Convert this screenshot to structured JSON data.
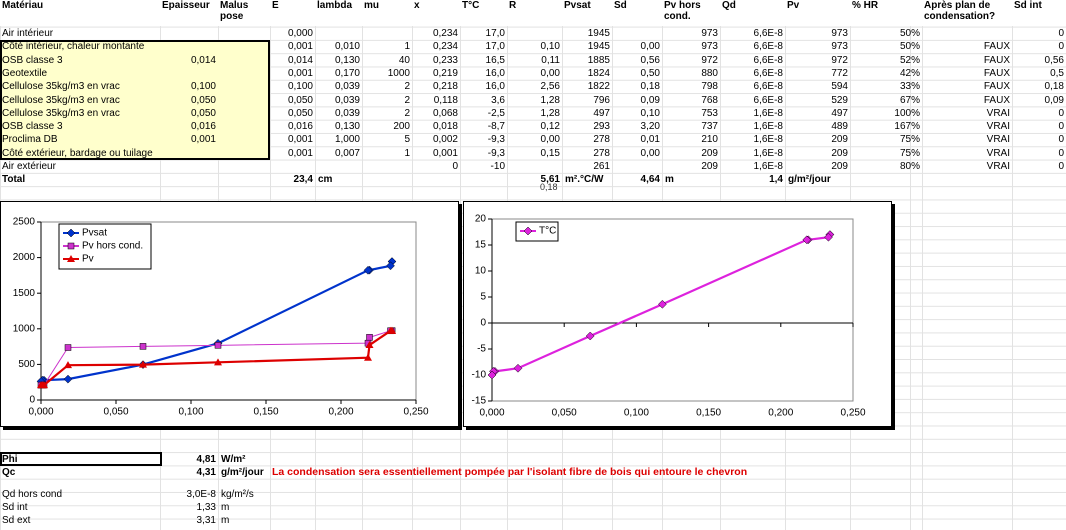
{
  "table": {
    "header": [
      "Matériau",
      "Epaisseur",
      "Malus pose",
      "E",
      "lambda",
      "mu",
      "x",
      "T°C",
      "R",
      "Pvsat",
      "Sd",
      "Pv hors cond.",
      "Qd",
      "Pv",
      "% HR",
      "Après plan de condensation?",
      "Sd int"
    ],
    "rows": [
      [
        "Air intérieur",
        null,
        null,
        "0,000",
        null,
        null,
        "0,234",
        "17,0",
        null,
        "1945",
        null,
        "973",
        "6,6E-8",
        "973",
        "50%",
        null,
        "0"
      ],
      [
        "Côté intérieur, chaleur montante",
        null,
        null,
        "0,001",
        "0,010",
        "1",
        "0,234",
        "17,0",
        "0,10",
        "1945",
        "0,00",
        "973",
        "6,6E-8",
        "973",
        "50%",
        "FAUX",
        "0"
      ],
      [
        "OSB classe 3",
        "0,014",
        null,
        "0,014",
        "0,130",
        "40",
        "0,233",
        "16,5",
        "0,11",
        "1885",
        "0,56",
        "972",
        "6,6E-8",
        "972",
        "52%",
        "FAUX",
        "0,56"
      ],
      [
        "Geotextile",
        null,
        null,
        "0,001",
        "0,170",
        "1000",
        "0,219",
        "16,0",
        "0,00",
        "1824",
        "0,50",
        "880",
        "6,6E-8",
        "772",
        "42%",
        "FAUX",
        "0,5"
      ],
      [
        "Cellulose 35kg/m3 en vrac",
        "0,100",
        null,
        "0,100",
        "0,039",
        "2",
        "0,218",
        "16,0",
        "2,56",
        "1822",
        "0,18",
        "798",
        "6,6E-8",
        "594",
        "33%",
        "FAUX",
        "0,18"
      ],
      [
        "Cellulose 35kg/m3 en vrac",
        "0,050",
        null,
        "0,050",
        "0,039",
        "2",
        "0,118",
        "3,6",
        "1,28",
        "796",
        "0,09",
        "768",
        "6,6E-8",
        "529",
        "67%",
        "FAUX",
        "0,09"
      ],
      [
        "Cellulose 35kg/m3 en vrac",
        "0,050",
        null,
        "0,050",
        "0,039",
        "2",
        "0,068",
        "-2,5",
        "1,28",
        "497",
        "0,10",
        "753",
        "1,6E-8",
        "497",
        "100%",
        "VRAI",
        "0"
      ],
      [
        "OSB classe 3",
        "0,016",
        null,
        "0,016",
        "0,130",
        "200",
        "0,018",
        "-8,7",
        "0,12",
        "293",
        "3,20",
        "737",
        "1,6E-8",
        "489",
        "167%",
        "VRAI",
        "0"
      ],
      [
        "Proclima DB",
        "0,001",
        null,
        "0,001",
        "1,000",
        "5",
        "0,002",
        "-9,3",
        "0,00",
        "278",
        "0,01",
        "210",
        "1,6E-8",
        "209",
        "75%",
        "VRAI",
        "0"
      ],
      [
        "Côté extérieur, bardage ou tuilage",
        null,
        null,
        "0,001",
        "0,007",
        "1",
        "0,001",
        "-9,3",
        "0,15",
        "278",
        "0,00",
        "209",
        "1,6E-8",
        "209",
        "75%",
        "VRAI",
        "0"
      ],
      [
        "Air extérieur",
        null,
        null,
        null,
        null,
        null,
        "0",
        "-10",
        null,
        "261",
        null,
        "209",
        "1,6E-8",
        "209",
        "80%",
        "VRAI",
        "0"
      ]
    ],
    "total": {
      "label": "Total",
      "thickness": "23,4",
      "thickness_unit": "cm",
      "resistance": "5,61",
      "resistance_unit": "m².°C/W",
      "sd": "4,64",
      "sd_unit": "m",
      "flux": "1,4",
      "flux_unit": "g/m²/jour",
      "note": "0,18"
    }
  },
  "charts": [
    {
      "type": "line",
      "x": [
        0.234,
        0.234,
        0.233,
        0.219,
        0.218,
        0.118,
        0.068,
        0.018,
        0.002,
        0.001,
        0
      ],
      "xlim": [
        0,
        0.25
      ],
      "xticks": [
        {
          "value": 0,
          "label": "0,000"
        },
        {
          "value": 0.05,
          "label": "0,050"
        },
        {
          "value": 0.1,
          "label": "0,100"
        },
        {
          "value": 0.15,
          "label": "0,150"
        },
        {
          "value": 0.2,
          "label": "0,200"
        },
        {
          "value": 0.25,
          "label": "0,250"
        }
      ],
      "ylim": [
        0,
        2500
      ],
      "yticks": [
        0,
        500,
        1000,
        1500,
        2000,
        2500
      ],
      "legend": "top-left",
      "series": [
        {
          "name": "Pvsat",
          "color": "#0033cc",
          "marker": "diamond",
          "values": [
            1945,
            1945,
            1885,
            1824,
            1822,
            796,
            497,
            293,
            278,
            278,
            261
          ]
        },
        {
          "name": "Pv hors cond.",
          "color": "#cc33cc",
          "marker": "square",
          "values": [
            973,
            973,
            972,
            880,
            798,
            768,
            753,
            737,
            210,
            209,
            209
          ]
        },
        {
          "name": "Pv",
          "color": "#dd0000",
          "marker": "triangle",
          "values": [
            973,
            973,
            972,
            772,
            594,
            529,
            497,
            489,
            209,
            209,
            209
          ]
        }
      ]
    },
    {
      "type": "line",
      "x": [
        0.234,
        0.234,
        0.233,
        0.219,
        0.218,
        0.118,
        0.068,
        0.018,
        0.002,
        0.001,
        0
      ],
      "xlim": [
        0,
        0.25
      ],
      "xticks": [
        {
          "value": 0,
          "label": "0,000"
        },
        {
          "value": 0.05,
          "label": "0,050"
        },
        {
          "value": 0.1,
          "label": "0,100"
        },
        {
          "value": 0.15,
          "label": "0,150"
        },
        {
          "value": 0.2,
          "label": "0,200"
        },
        {
          "value": 0.25,
          "label": "0,250"
        }
      ],
      "ylim": [
        -15,
        20
      ],
      "yticks": [
        -15,
        -10,
        -5,
        0,
        5,
        10,
        15,
        20
      ],
      "legend": "top-left",
      "series": [
        {
          "name": "T°C",
          "color": "#dd22dd",
          "marker": "diamond",
          "values": [
            17,
            17,
            16.5,
            16,
            16,
            3.6,
            -2.5,
            -8.7,
            -9.3,
            -9.3,
            -10
          ]
        }
      ]
    }
  ],
  "summary": {
    "phi": {
      "label": "Phi",
      "value": "4,81",
      "unit": "W/m²"
    },
    "qc": {
      "label": "Qc",
      "value": "4,31",
      "unit": "g/m²/jour",
      "message": "La condensation sera essentiellement pompée par l'isolant fibre de bois qui entoure le chevron"
    },
    "qd": {
      "label": "Qd hors cond",
      "value": "3,0E-8",
      "unit": "kg/m²/s"
    },
    "sd_int": {
      "label": "Sd int",
      "value": "1,33",
      "unit": "m"
    },
    "sd_ext": {
      "label": "Sd ext",
      "value": "3,31",
      "unit": "m"
    }
  }
}
